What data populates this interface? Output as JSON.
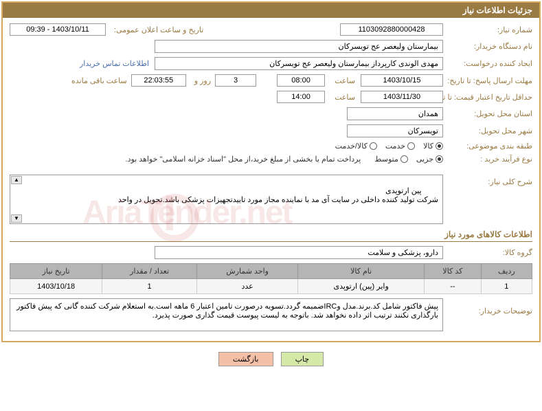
{
  "header": {
    "title": "جزئیات اطلاعات نیاز"
  },
  "fields": {
    "need_no_label": "شماره نیاز:",
    "need_no": "1103092880000428",
    "announce_label": "تاریخ و ساعت اعلان عمومی:",
    "announce_value": "1403/10/11 - 09:39",
    "buyer_org_label": "نام دستگاه خریدار:",
    "buyer_org": "بیمارستان ولیعصر  عج  تویسرکان",
    "requester_label": "ایجاد کننده درخواست:",
    "requester": "مهدی الوندی کارپرداز بیمارستان ولیعصر  عج  تویسرکان",
    "contact_link": "اطلاعات تماس خریدار",
    "deadline_label": "مهلت ارسال پاسخ: تا تاریخ:",
    "deadline_date": "1403/10/15",
    "time_label": "ساعت",
    "deadline_time": "08:00",
    "days_value": "3",
    "days_label": "روز و",
    "remaining_time": "22:03:55",
    "remaining_label": "ساعت باقی مانده",
    "validity_label": "حداقل تاریخ اعتبار قیمت: تا تاریخ:",
    "validity_date": "1403/11/30",
    "validity_time": "14:00",
    "province_label": "استان محل تحویل:",
    "province": "همدان",
    "city_label": "شهر محل تحویل:",
    "city": "تویسرکان",
    "category_label": "طبقه بندی موضوعی:",
    "cat_goods": "کالا",
    "cat_service": "خدمت",
    "cat_both": "کالا/خدمت",
    "process_label": "نوع فرآیند خرید :",
    "proc_partial": "جزیی",
    "proc_medium": "متوسط",
    "process_note": "پرداخت تمام یا بخشی از مبلغ خرید،از محل \"اسناد خزانه اسلامی\" خواهد بود.",
    "desc_label": "شرح کلی نیاز:",
    "desc_text": "پین ارتوپدی\nشرکت تولید کننده داخلی در سایت آی مد با نماینده مجاز مورد تاییدتجهیزات پزشکی باشد.تحویل در واحد",
    "goods_section": "اطلاعات کالاهای مورد نیاز",
    "goods_group_label": "گروه کالا:",
    "goods_group": "دارو، پزشکی و سلامت",
    "buyer_notes_label": "توضیحات خریدار:",
    "buyer_notes": "پیش فاکتور شامل کد.برند.مدل وIRCضمیمه گردد.تسویه درصورت تامین اعتبار 6 ماهه است.به استعلام شرکت کننده گانی که پیش فاکتور بارگذاری نکنند ترتیب اثر داده نخواهد شد. باتوجه به لیست پیوست قیمت گذاری صورت پذیرد."
  },
  "table": {
    "headers": [
      "ردیف",
      "کد کالا",
      "نام کالا",
      "واحد شمارش",
      "تعداد / مقدار",
      "تاریخ نیاز"
    ],
    "rows": [
      [
        "1",
        "--",
        "وایر (پین) ارتوپدی",
        "عدد",
        "1",
        "1403/10/18"
      ]
    ]
  },
  "buttons": {
    "print": "چاپ",
    "back": "بازگشت"
  },
  "colors": {
    "header_bg": "#9a7a43",
    "border": "#d4a95b",
    "label": "#9a7a43"
  }
}
